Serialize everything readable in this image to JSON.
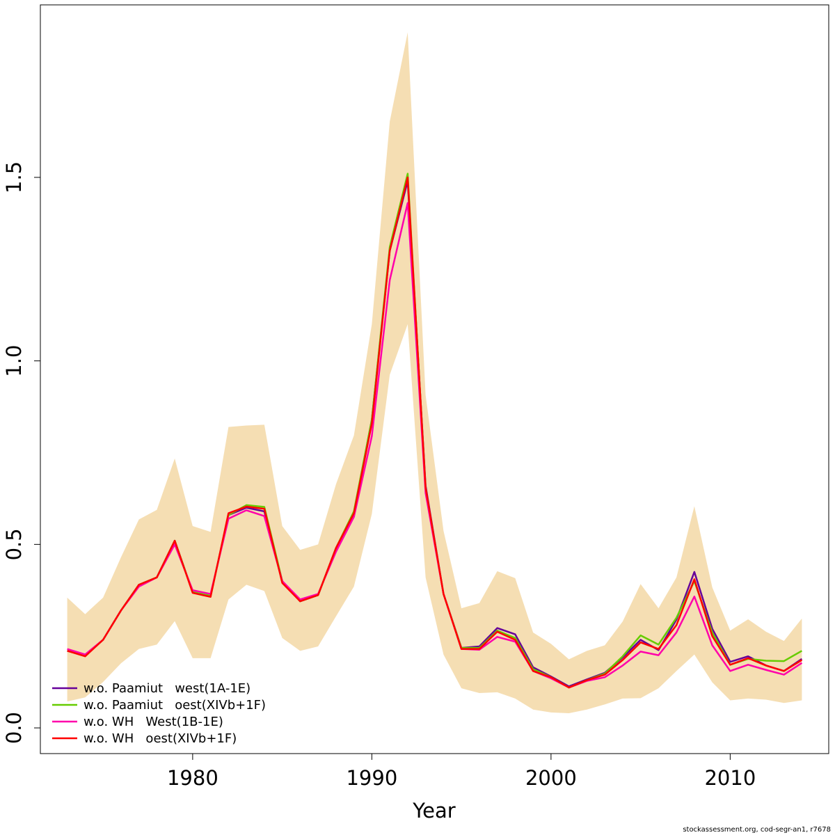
{
  "chart_data": {
    "type": "line",
    "xlabel": "Year",
    "ylabel": "",
    "xlim": [
      1971.5,
      2015.5
    ],
    "ylim": [
      -0.07,
      1.97
    ],
    "xticks": [
      1980,
      1990,
      2000,
      2010
    ],
    "yticks": [
      0.0,
      0.5,
      1.0,
      1.5
    ],
    "ytick_labels": [
      "0.0",
      "0.5",
      "1.0",
      "1.5"
    ],
    "grid": false,
    "legend_position": "bottom-left",
    "confidence_band": {
      "color": "#F5DEB3",
      "x": [
        1973,
        1974,
        1975,
        1976,
        1977,
        1978,
        1979,
        1980,
        1981,
        1982,
        1983,
        1984,
        1985,
        1986,
        1987,
        1988,
        1989,
        1990,
        1991,
        1992,
        1993,
        1994,
        1995,
        1996,
        1997,
        1998,
        1999,
        2000,
        2001,
        2002,
        2003,
        2004,
        2005,
        2006,
        2007,
        2008,
        2009,
        2010,
        2011,
        2012,
        2013,
        2014
      ],
      "upper": [
        0.355,
        0.31,
        0.355,
        0.465,
        0.568,
        0.594,
        0.734,
        0.55,
        0.534,
        0.82,
        0.824,
        0.826,
        0.55,
        0.485,
        0.5,
        0.664,
        0.797,
        1.1,
        1.652,
        1.895,
        0.907,
        0.537,
        0.326,
        0.34,
        0.427,
        0.408,
        0.26,
        0.229,
        0.187,
        0.21,
        0.225,
        0.29,
        0.392,
        0.326,
        0.41,
        0.604,
        0.383,
        0.265,
        0.296,
        0.262,
        0.237,
        0.298
      ],
      "lower": [
        0.072,
        0.083,
        0.125,
        0.176,
        0.215,
        0.227,
        0.291,
        0.19,
        0.19,
        0.35,
        0.39,
        0.373,
        0.245,
        0.21,
        0.222,
        0.304,
        0.385,
        0.583,
        0.962,
        1.1,
        0.41,
        0.2,
        0.108,
        0.095,
        0.097,
        0.08,
        0.05,
        0.042,
        0.04,
        0.05,
        0.064,
        0.08,
        0.081,
        0.108,
        0.155,
        0.2,
        0.124,
        0.075,
        0.08,
        0.077,
        0.068,
        0.075
      ]
    },
    "x": [
      1973,
      1974,
      1975,
      1976,
      1977,
      1978,
      1979,
      1980,
      1981,
      1982,
      1983,
      1984,
      1985,
      1986,
      1987,
      1988,
      1989,
      1990,
      1991,
      1992,
      1993,
      1994,
      1995,
      1996,
      1997,
      1998,
      1999,
      2000,
      2001,
      2002,
      2003,
      2004,
      2005,
      2006,
      2007,
      2008,
      2009,
      2010,
      2011,
      2012,
      2013,
      2014
    ],
    "series": [
      {
        "name": "w.o. Paamiut   west(1A-1E)",
        "color": "#660099",
        "values": [
          0.21,
          0.197,
          0.24,
          0.32,
          0.39,
          0.41,
          0.51,
          0.37,
          0.36,
          0.58,
          0.6,
          0.59,
          0.4,
          0.345,
          0.362,
          0.49,
          0.585,
          0.84,
          1.3,
          1.49,
          0.66,
          0.365,
          0.218,
          0.222,
          0.272,
          0.255,
          0.165,
          0.14,
          0.113,
          0.132,
          0.15,
          0.192,
          0.24,
          0.212,
          0.295,
          0.425,
          0.27,
          0.18,
          0.195,
          0.17,
          0.155,
          0.188
        ]
      },
      {
        "name": "w.o. Paamiut   oest(XIVb+1F)",
        "color": "#66CC00",
        "values": [
          0.21,
          0.197,
          0.24,
          0.32,
          0.39,
          0.41,
          0.51,
          0.37,
          0.36,
          0.58,
          0.607,
          0.602,
          0.4,
          0.345,
          0.362,
          0.49,
          0.59,
          0.84,
          1.31,
          1.51,
          0.65,
          0.365,
          0.218,
          0.218,
          0.265,
          0.245,
          0.16,
          0.138,
          0.11,
          0.13,
          0.148,
          0.195,
          0.252,
          0.227,
          0.3,
          0.4,
          0.26,
          0.172,
          0.188,
          0.183,
          0.182,
          0.21
        ]
      },
      {
        "name": "w.o. WH   West(1B-1E)",
        "color": "#FF00AA",
        "values": [
          0.215,
          0.2,
          0.24,
          0.32,
          0.385,
          0.41,
          0.5,
          0.375,
          0.365,
          0.57,
          0.593,
          0.577,
          0.4,
          0.35,
          0.365,
          0.48,
          0.575,
          0.795,
          1.22,
          1.43,
          0.64,
          0.365,
          0.215,
          0.213,
          0.248,
          0.235,
          0.155,
          0.135,
          0.11,
          0.128,
          0.138,
          0.17,
          0.208,
          0.198,
          0.26,
          0.358,
          0.225,
          0.155,
          0.172,
          0.158,
          0.145,
          0.177
        ]
      },
      {
        "name": "w.o. WH   oest(XIVb+1F)",
        "color": "#FF0000",
        "values": [
          0.21,
          0.195,
          0.24,
          0.32,
          0.39,
          0.41,
          0.51,
          0.368,
          0.357,
          0.585,
          0.603,
          0.597,
          0.395,
          0.345,
          0.362,
          0.49,
          0.585,
          0.83,
          1.3,
          1.5,
          0.655,
          0.365,
          0.215,
          0.215,
          0.262,
          0.24,
          0.155,
          0.138,
          0.11,
          0.13,
          0.145,
          0.185,
          0.233,
          0.215,
          0.28,
          0.405,
          0.25,
          0.172,
          0.19,
          0.17,
          0.155,
          0.185
        ]
      }
    ]
  },
  "footer": {
    "credit": "stockassessment.org, cod-segr-an1, r7678"
  }
}
